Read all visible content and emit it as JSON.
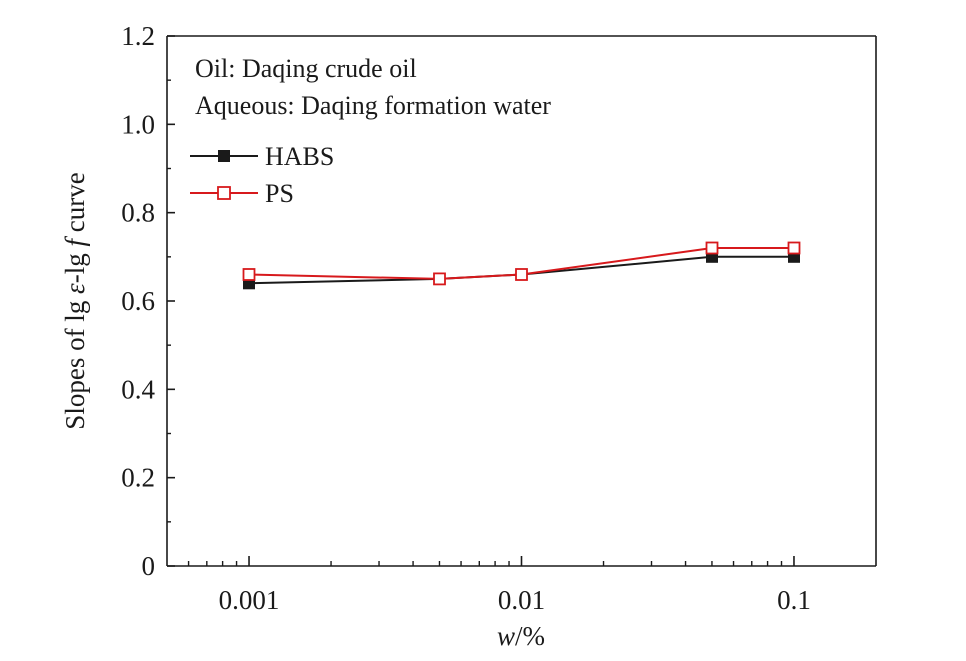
{
  "chart_data": {
    "type": "line",
    "xlabel": {
      "var": "w",
      "unit": "/%"
    },
    "ylabel": {
      "pre": "Slopes of lg ",
      "eps": "ε",
      "mid": "-lg ",
      "f": "f",
      "post": " curve"
    },
    "xscale": "log",
    "xlim": [
      0.0005,
      0.2
    ],
    "ylim": [
      0,
      1.2
    ],
    "x_ticks": [
      0.001,
      0.01,
      0.1
    ],
    "x_tick_labels": [
      "0.001",
      "0.01",
      "0.1"
    ],
    "y_ticks": [
      0,
      0.2,
      0.4,
      0.6,
      0.8,
      1.0,
      1.2
    ],
    "y_tick_labels": [
      "0",
      "0.2",
      "0.4",
      "0.6",
      "0.8",
      "1.0",
      "1.2"
    ],
    "annotations": [
      "Oil: Daqing crude oil",
      "Aqueous: Daqing formation water"
    ],
    "legend_position": "top-left",
    "grid": false,
    "series": [
      {
        "name": "HABS",
        "color": "#1a1a1a",
        "marker": "filled-square",
        "x": [
          0.001,
          0.005,
          0.01,
          0.05,
          0.1
        ],
        "y": [
          0.64,
          0.65,
          0.66,
          0.7,
          0.7
        ]
      },
      {
        "name": "PS",
        "color": "#d7191c",
        "marker": "open-square",
        "x": [
          0.001,
          0.005,
          0.01,
          0.05,
          0.1
        ],
        "y": [
          0.66,
          0.65,
          0.66,
          0.72,
          0.72
        ]
      }
    ]
  }
}
